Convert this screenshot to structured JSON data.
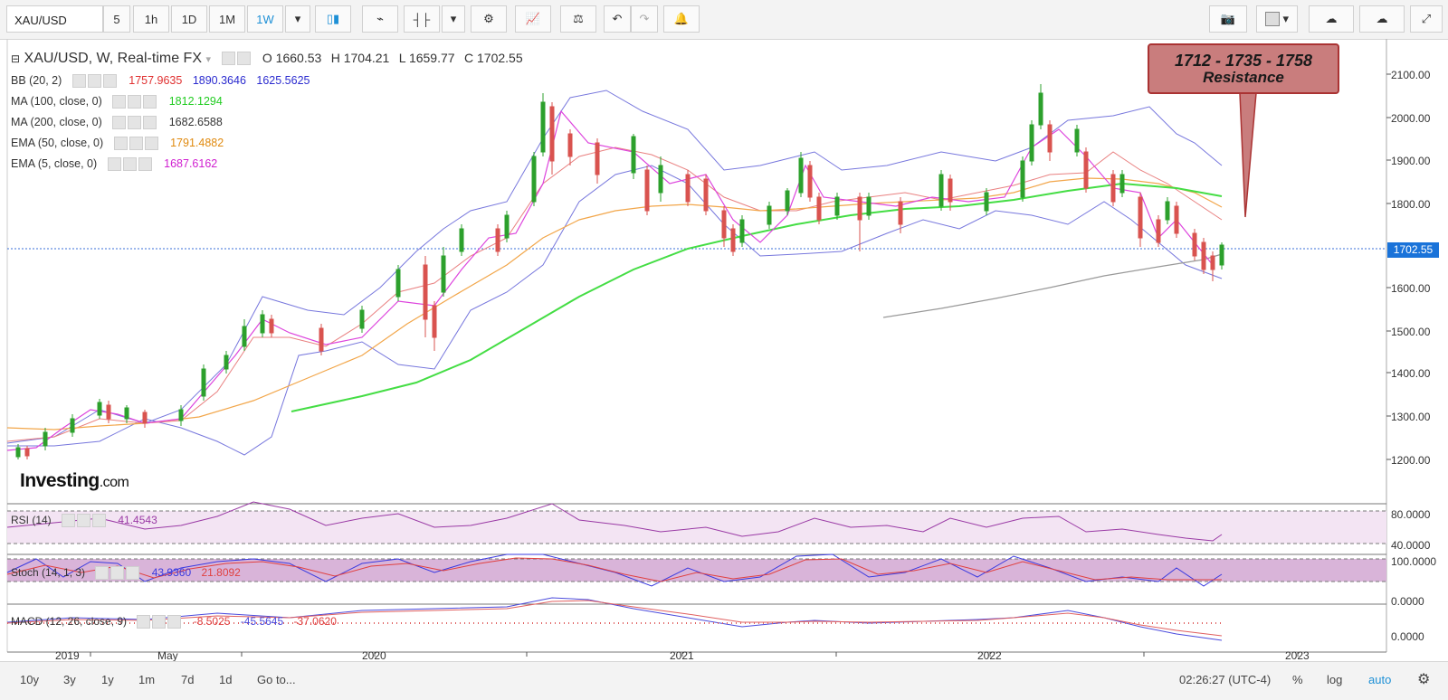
{
  "symbol": "XAU/USD",
  "toolbar": {
    "intervals": [
      "5",
      "1h",
      "1D",
      "1M",
      "1W"
    ],
    "active_interval": "1W"
  },
  "chart_title": "XAU/USD, W, Real-time FX",
  "ohlc": {
    "open": "O 1660.53",
    "high": "H 1704.21",
    "low": "L 1659.77",
    "close": "C 1702.55"
  },
  "indicators": [
    {
      "name": "BB (20, 2)",
      "values": [
        "1757.9635",
        "1890.3646",
        "1625.5625"
      ],
      "colors": [
        "#e03030",
        "#2b2bcf",
        "#2b2bcf"
      ]
    },
    {
      "name": "MA (100, close, 0)",
      "values": [
        "1812.1294"
      ],
      "colors": [
        "#22cc22"
      ]
    },
    {
      "name": "MA (200, close, 0)",
      "values": [
        "1682.6588"
      ],
      "colors": [
        "#333333"
      ]
    },
    {
      "name": "EMA (50, close, 0)",
      "values": [
        "1791.4882"
      ],
      "colors": [
        "#f0a020"
      ]
    },
    {
      "name": "EMA (5, close, 0)",
      "values": [
        "1687.6162"
      ],
      "colors": [
        "#d020d0"
      ]
    }
  ],
  "resistance": {
    "levels": "1712 - 1735 - 1758",
    "label": "Resistance"
  },
  "price_tag": "1702.55",
  "y_axis_labels": [
    "2100.00",
    "2000.00",
    "1900.00",
    "1800.00",
    "1600.00",
    "1500.00",
    "1400.00",
    "1300.00",
    "1200.00"
  ],
  "x_axis_labels": [
    "2019",
    "May",
    "2020",
    "2021",
    "2022",
    "2023"
  ],
  "rsi": {
    "name": "RSI (14)",
    "value": "41.4543",
    "axis": [
      "80.0000",
      "40.0000"
    ]
  },
  "stoch": {
    "name": "Stoch (14, 1, 3)",
    "values": [
      "43.9360",
      "21.8092"
    ],
    "axis": [
      "100.0000",
      "0.0000"
    ]
  },
  "macd": {
    "name": "MACD (12, 26, close, 9)",
    "values": [
      "-8.5025",
      "-45.5645",
      "-37.0620"
    ],
    "axis": [
      "0.0000"
    ]
  },
  "logo": {
    "main": "Investing",
    "suffix": ".com"
  },
  "bottombar": {
    "ranges": [
      "10y",
      "3y",
      "1y",
      "1m",
      "7d",
      "1d",
      "Go to..."
    ],
    "time": "02:26:27 (UTC-4)",
    "options": [
      "%",
      "log",
      "auto"
    ]
  },
  "colors": {
    "accent": "#1e90d6",
    "price_line": "#1a73d9",
    "up": "#2ca02c",
    "down": "#d9534f"
  }
}
